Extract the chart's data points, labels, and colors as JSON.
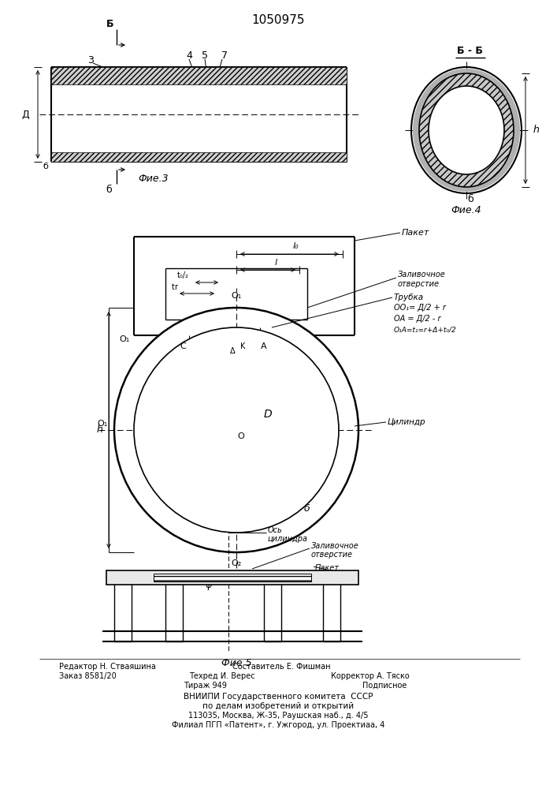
{
  "title": "1050975",
  "bg": "#ffffff",
  "lc": "#000000",
  "fig3_label": "Фие.3",
  "fig4_label": "Фие.4",
  "fig5_label": "Фие 5",
  "fig2_labels_right": [
    "Пакет",
    "Заливочное\nотверстие",
    "Трубка",
    "Цилиндр"
  ],
  "fig2_formulas": [
    "OO₁= Д/2 + r",
    "OA = Д/2 - r",
    "O₁A=t₁=r+Δ+t₀/2"
  ],
  "fig5_labels": [
    "Ось\nцилиндра",
    "Заливочное\nотверстие",
    "Пакет"
  ]
}
